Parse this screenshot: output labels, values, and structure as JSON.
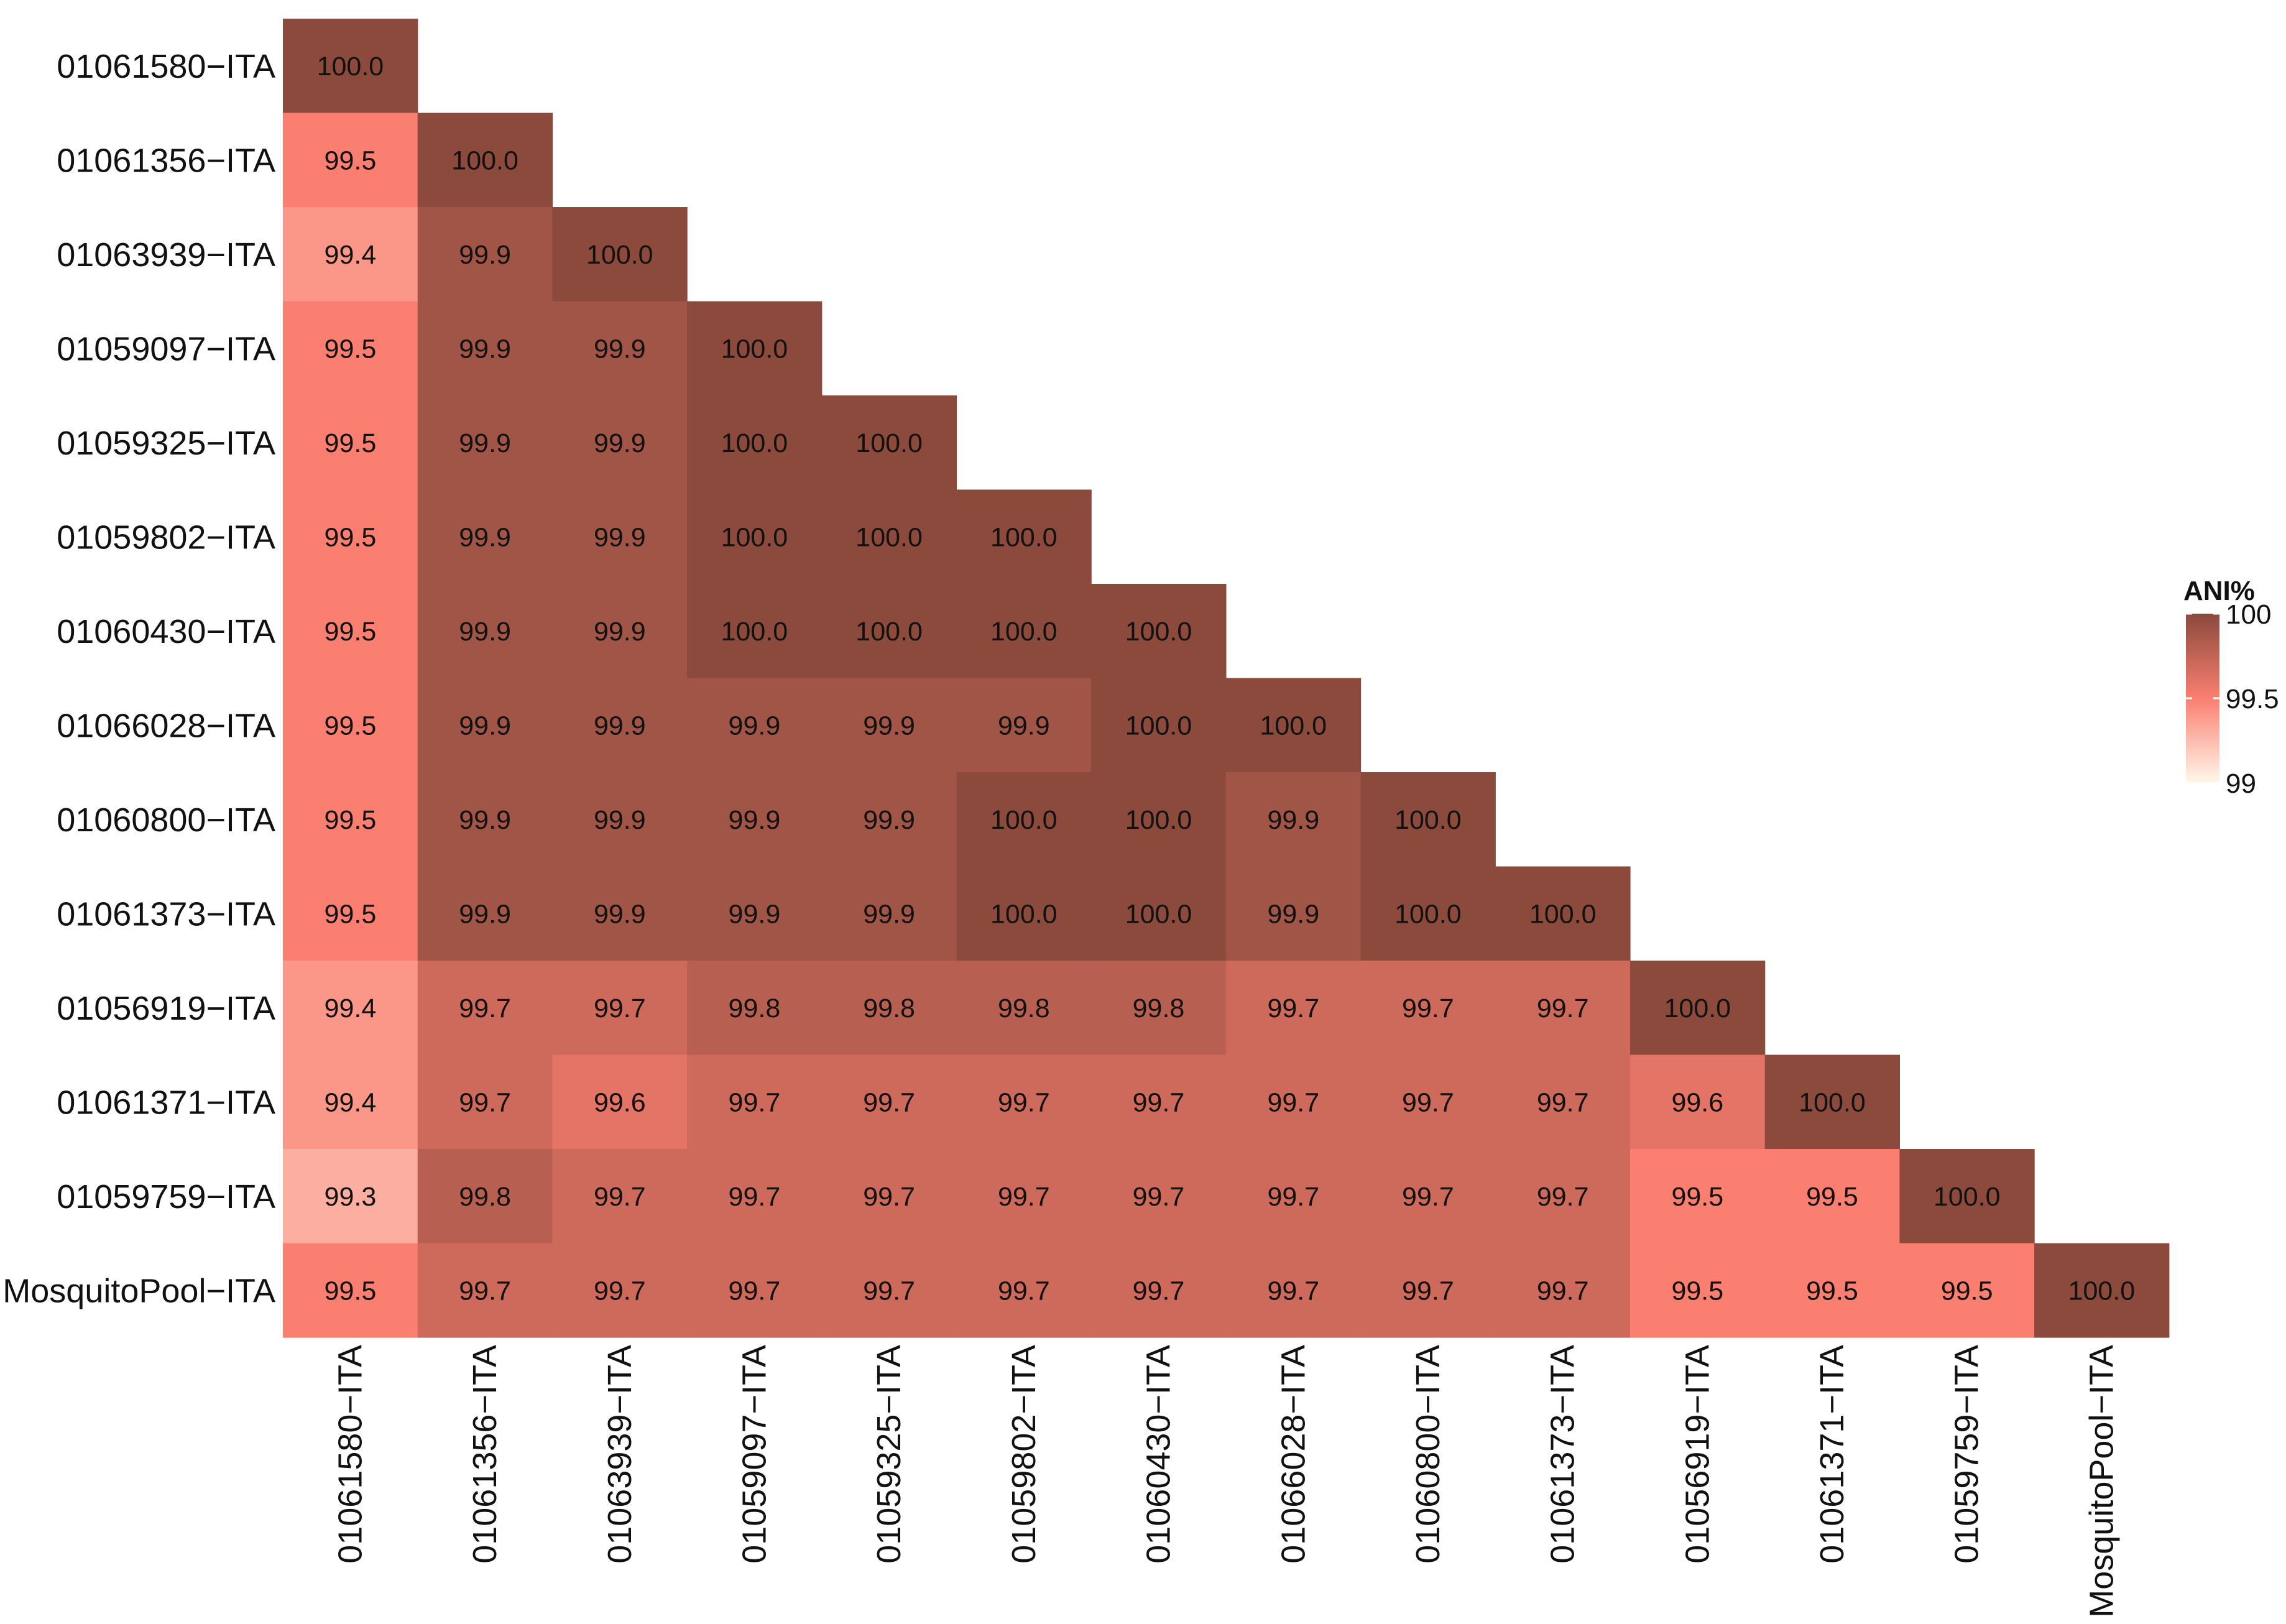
{
  "chart_data": {
    "type": "heatmap",
    "title": "",
    "xlabel": "",
    "ylabel": "",
    "rows": [
      "01061580−ITA",
      "01061356−ITA",
      "01063939−ITA",
      "01059097−ITA",
      "01059325−ITA",
      "01059802−ITA",
      "01060430−ITA",
      "01066028−ITA",
      "01060800−ITA",
      "01061373−ITA",
      "01056919−ITA",
      "01061371−ITA",
      "01059759−ITA",
      "MosquitoPool−ITA"
    ],
    "columns": [
      "01061580−ITA",
      "01061356−ITA",
      "01063939−ITA",
      "01059097−ITA",
      "01059325−ITA",
      "01059802−ITA",
      "01060430−ITA",
      "01066028−ITA",
      "01060800−ITA",
      "01061373−ITA",
      "01056919−ITA",
      "01061371−ITA",
      "01059759−ITA",
      "MosquitoPool−ITA"
    ],
    "values": [
      [
        "100.0"
      ],
      [
        "99.5",
        "100.0"
      ],
      [
        "99.4",
        "99.9",
        "100.0"
      ],
      [
        "99.5",
        "99.9",
        "99.9",
        "100.0"
      ],
      [
        "99.5",
        "99.9",
        "99.9",
        "100.0",
        "100.0"
      ],
      [
        "99.5",
        "99.9",
        "99.9",
        "100.0",
        "100.0",
        "100.0"
      ],
      [
        "99.5",
        "99.9",
        "99.9",
        "100.0",
        "100.0",
        "100.0",
        "100.0"
      ],
      [
        "99.5",
        "99.9",
        "99.9",
        "99.9",
        "99.9",
        "99.9",
        "100.0",
        "100.0"
      ],
      [
        "99.5",
        "99.9",
        "99.9",
        "99.9",
        "99.9",
        "100.0",
        "100.0",
        "99.9",
        "100.0"
      ],
      [
        "99.5",
        "99.9",
        "99.9",
        "99.9",
        "99.9",
        "100.0",
        "100.0",
        "99.9",
        "100.0",
        "100.0"
      ],
      [
        "99.4",
        "99.7",
        "99.7",
        "99.8",
        "99.8",
        "99.8",
        "99.8",
        "99.7",
        "99.7",
        "99.7",
        "100.0"
      ],
      [
        "99.4",
        "99.7",
        "99.6",
        "99.7",
        "99.7",
        "99.7",
        "99.7",
        "99.7",
        "99.7",
        "99.7",
        "99.6",
        "100.0"
      ],
      [
        "99.3",
        "99.8",
        "99.7",
        "99.7",
        "99.7",
        "99.7",
        "99.7",
        "99.7",
        "99.7",
        "99.7",
        "99.5",
        "99.5",
        "100.0"
      ],
      [
        "99.5",
        "99.7",
        "99.7",
        "99.7",
        "99.7",
        "99.7",
        "99.7",
        "99.7",
        "99.7",
        "99.7",
        "99.5",
        "99.5",
        "99.5",
        "100.0"
      ]
    ],
    "legend": {
      "title": "ANI%",
      "range": [
        99,
        100
      ],
      "ticks": [
        "100",
        "99.5",
        "99"
      ],
      "tick_values": [
        100,
        99.5,
        99
      ],
      "position": "right",
      "colors": {
        "low": "#fff8ea",
        "mid": "#fa7f70",
        "high": "#8b4a3c"
      }
    }
  }
}
